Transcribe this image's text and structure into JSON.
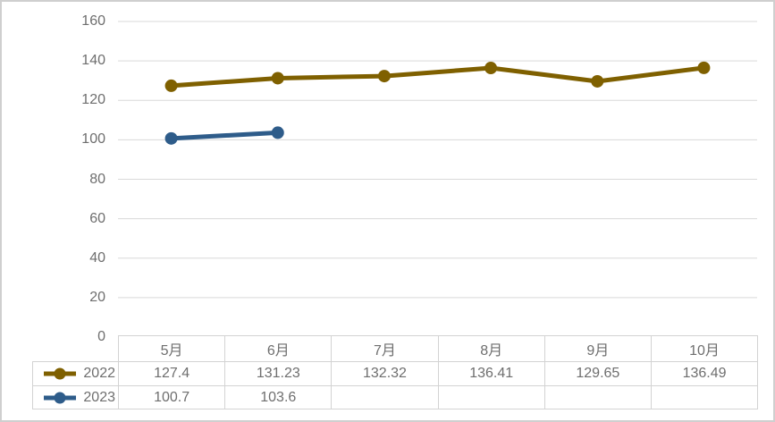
{
  "chart_data": {
    "type": "line",
    "title": "",
    "xlabel": "",
    "ylabel": "",
    "categories": [
      "5月",
      "6月",
      "7月",
      "8月",
      "9月",
      "10月"
    ],
    "series": [
      {
        "name": "2022",
        "color": "#7F6000",
        "values": [
          127.4,
          131.23,
          132.32,
          136.41,
          129.65,
          136.49
        ]
      },
      {
        "name": "2023",
        "color": "#2E5C8A",
        "values": [
          100.7,
          103.6,
          null,
          null,
          null,
          null
        ]
      }
    ],
    "ylim": [
      0,
      160
    ],
    "ytick_step": 20,
    "grid": "horizontal",
    "legend_position": "data-table-left",
    "has_data_table": true,
    "colors": {
      "text": "#6E6E6E",
      "gridline": "#D9D9D9",
      "table_border": "#D3D3D3",
      "canvas_border": "#CFCFCF",
      "background": "#FFFFFF"
    }
  }
}
